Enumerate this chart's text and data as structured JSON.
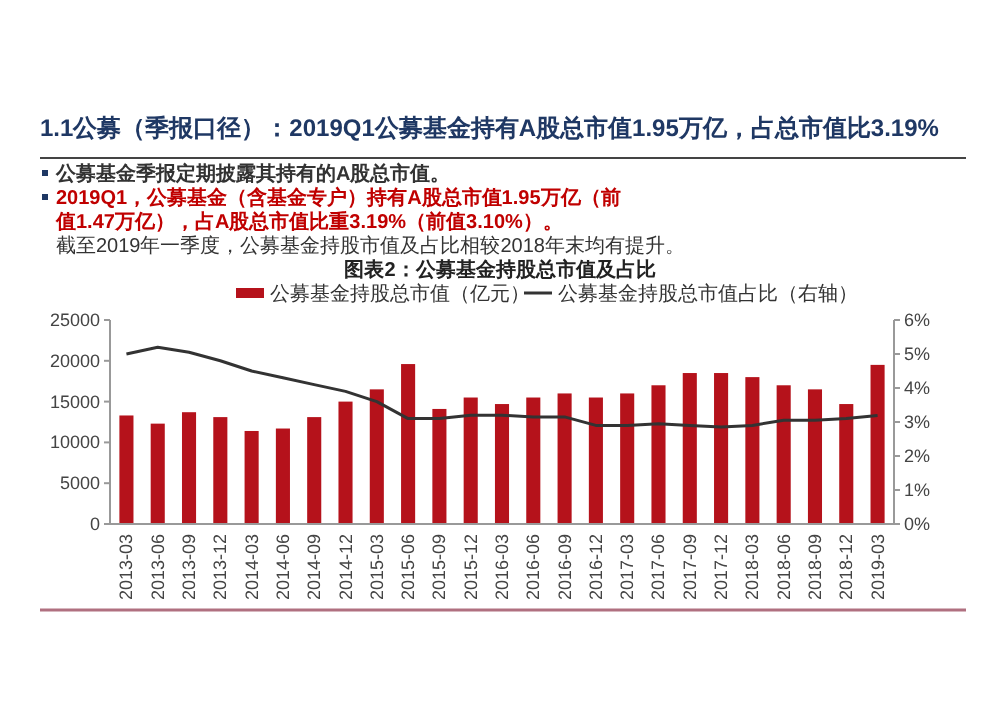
{
  "chart_data": {
    "type": "bar",
    "title": "1.1公募（季报口径）：2019Q1公募基金持有A股总市值1.95万亿，占总市值比3.19%",
    "subtitle": "图表2：公募基金持股总市值及占比",
    "annotations": [
      "公募基金季报定期披露其持有的A股总市值。",
      "2019Q1，公募基金（含基金专户）持有A股总市值1.95万亿（前值1.47万亿），占A股总市值比重3.19%（前值3.10%）。",
      "截至2019年一季度，公募基金持股市值及占比相较2018年末均有提升。"
    ],
    "categories": [
      "2013-03",
      "2013-06",
      "2013-09",
      "2013-12",
      "2014-03",
      "2014-06",
      "2014-09",
      "2014-12",
      "2015-03",
      "2015-06",
      "2015-09",
      "2015-12",
      "2016-03",
      "2016-06",
      "2016-09",
      "2016-12",
      "2017-03",
      "2017-06",
      "2017-09",
      "2017-12",
      "2018-03",
      "2018-06",
      "2018-09",
      "2018-12",
      "2019-03"
    ],
    "series": [
      {
        "name": "公募基金持股总市值（亿元）",
        "type": "bar",
        "color": "#b5121b",
        "values": [
          13300,
          12300,
          13700,
          13100,
          11400,
          11700,
          13100,
          15000,
          16500,
          19600,
          14100,
          15500,
          14700,
          15500,
          16000,
          15500,
          16000,
          17000,
          18500,
          18500,
          18000,
          17000,
          16500,
          14700,
          19500
        ]
      },
      {
        "name": "公募基金持股总市值占比（右轴）",
        "type": "line",
        "axis": "y2",
        "color": "#333333",
        "values": [
          5.0,
          5.2,
          5.05,
          4.8,
          4.5,
          4.3,
          4.1,
          3.9,
          3.6,
          3.1,
          3.1,
          3.2,
          3.2,
          3.15,
          3.15,
          2.9,
          2.9,
          2.95,
          2.9,
          2.85,
          2.9,
          3.05,
          3.05,
          3.1,
          3.19
        ]
      }
    ],
    "ylim": [
      0,
      25000
    ],
    "yticks": [
      0,
      5000,
      10000,
      15000,
      20000,
      25000
    ],
    "y2lim": [
      0,
      6
    ],
    "y2ticks": [
      {
        "value": 0,
        "label": "0%"
      },
      {
        "value": 1,
        "label": "1%"
      },
      {
        "value": 2,
        "label": "2%"
      },
      {
        "value": 3,
        "label": "3%"
      },
      {
        "value": 4,
        "label": "4%"
      },
      {
        "value": 5,
        "label": "5%"
      },
      {
        "value": 6,
        "label": "6%"
      }
    ],
    "legend": "top",
    "grid": false,
    "marker": "none",
    "line_style": "solid"
  }
}
